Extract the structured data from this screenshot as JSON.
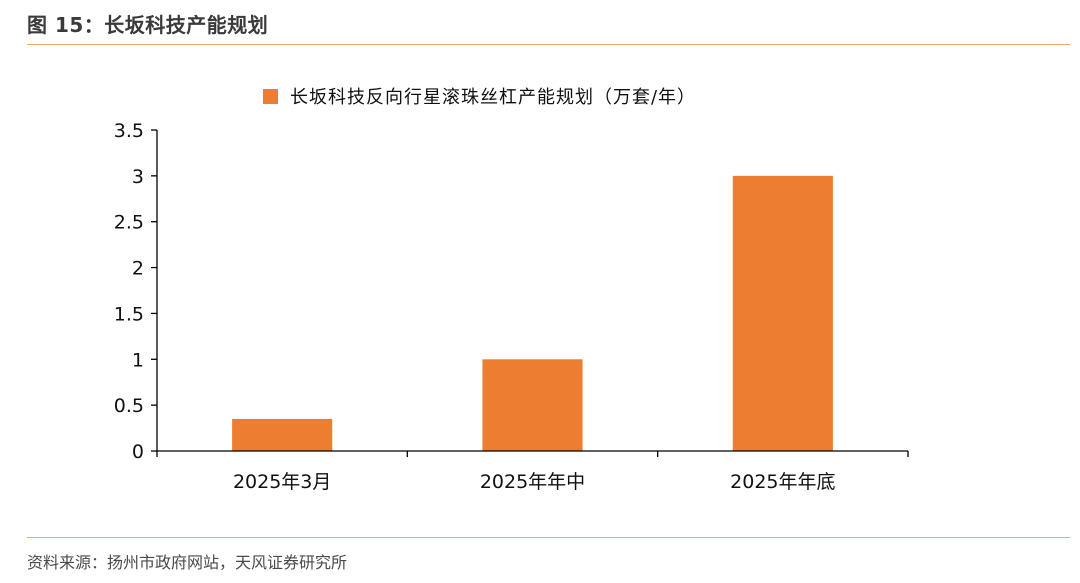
{
  "figure": {
    "title": "图 15：长坂科技产能规划",
    "source": "资料来源：扬州市政府网站，天风证券研究所"
  },
  "colors": {
    "bar": "#ed7d31",
    "rule": "#f0a868",
    "axis": "#000000"
  },
  "chart_data": {
    "type": "bar",
    "categories": [
      "2025年3月",
      "2025年年中",
      "2025年年底"
    ],
    "series": [
      {
        "name": "长坂科技反向行星滚珠丝杠产能规划（万套/年）",
        "values": [
          0.35,
          1,
          3
        ]
      }
    ],
    "ylim": [
      0,
      3.5
    ],
    "yticks": [
      "0",
      "0.5",
      "1",
      "1.5",
      "2",
      "2.5",
      "3",
      "3.5"
    ],
    "grid": false,
    "legend_position": "top"
  }
}
